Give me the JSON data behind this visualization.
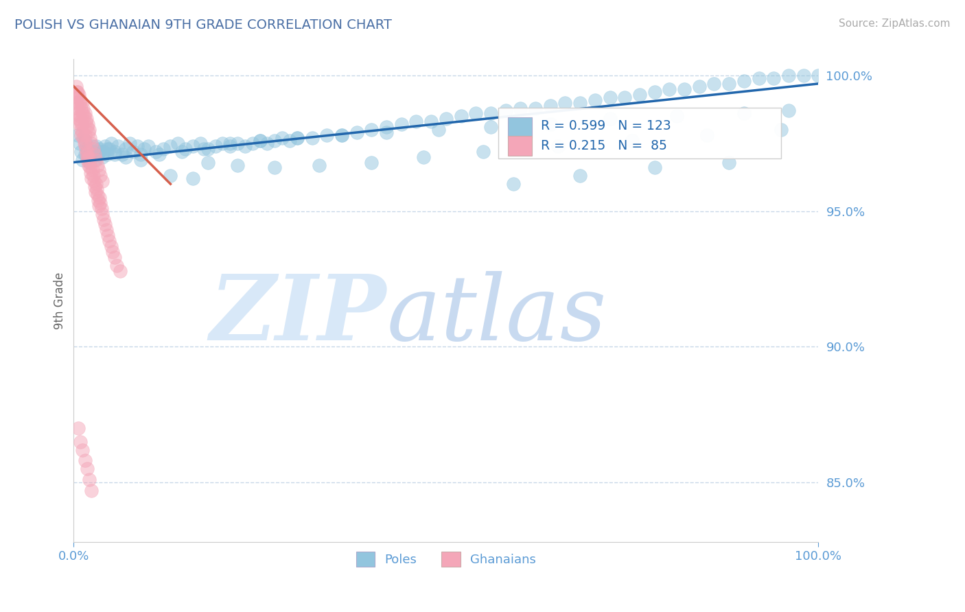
{
  "title": "POLISH VS GHANAIAN 9TH GRADE CORRELATION CHART",
  "source_text": "Source: ZipAtlas.com",
  "ylabel": "9th Grade",
  "x_min": 0.0,
  "x_max": 1.0,
  "y_min": 0.828,
  "y_max": 1.006,
  "y_ticks": [
    0.85,
    0.9,
    0.95,
    1.0
  ],
  "y_tick_labels": [
    "85.0%",
    "90.0%",
    "95.0%",
    "100.0%"
  ],
  "blue_R": 0.599,
  "blue_N": 123,
  "pink_R": 0.215,
  "pink_N": 85,
  "blue_color": "#92c5de",
  "pink_color": "#f4a6b8",
  "blue_line_color": "#2166ac",
  "pink_line_color": "#d6604d",
  "title_color": "#4a6fa5",
  "axis_color": "#5b9bd5",
  "legend_text_color": "#2166ac",
  "watermark_zip_color": "#d8e8f8",
  "watermark_atlas_color": "#c8daf0",
  "grid_color": "#c8d8e8",
  "background_color": "#ffffff",
  "blue_scatter_x": [
    0.005,
    0.008,
    0.01,
    0.012,
    0.015,
    0.018,
    0.02,
    0.022,
    0.025,
    0.028,
    0.03,
    0.032,
    0.035,
    0.038,
    0.04,
    0.042,
    0.045,
    0.048,
    0.05,
    0.055,
    0.06,
    0.065,
    0.07,
    0.075,
    0.08,
    0.085,
    0.09,
    0.095,
    0.1,
    0.11,
    0.12,
    0.13,
    0.14,
    0.15,
    0.16,
    0.17,
    0.18,
    0.19,
    0.2,
    0.21,
    0.22,
    0.23,
    0.24,
    0.25,
    0.26,
    0.27,
    0.28,
    0.29,
    0.3,
    0.32,
    0.34,
    0.36,
    0.38,
    0.4,
    0.42,
    0.44,
    0.46,
    0.48,
    0.5,
    0.52,
    0.54,
    0.56,
    0.58,
    0.6,
    0.62,
    0.64,
    0.66,
    0.68,
    0.7,
    0.72,
    0.74,
    0.76,
    0.78,
    0.8,
    0.82,
    0.84,
    0.86,
    0.88,
    0.9,
    0.92,
    0.94,
    0.96,
    0.98,
    1.0,
    0.015,
    0.025,
    0.035,
    0.045,
    0.055,
    0.07,
    0.09,
    0.115,
    0.145,
    0.175,
    0.21,
    0.25,
    0.3,
    0.36,
    0.42,
    0.49,
    0.56,
    0.64,
    0.72,
    0.81,
    0.9,
    0.96,
    0.18,
    0.22,
    0.27,
    0.33,
    0.4,
    0.47,
    0.55,
    0.65,
    0.75,
    0.85,
    0.95,
    0.59,
    0.68,
    0.78,
    0.88,
    0.13,
    0.16
  ],
  "blue_scatter_y": [
    0.978,
    0.975,
    0.972,
    0.969,
    0.971,
    0.973,
    0.97,
    0.968,
    0.972,
    0.969,
    0.974,
    0.971,
    0.973,
    0.97,
    0.972,
    0.974,
    0.971,
    0.973,
    0.975,
    0.972,
    0.974,
    0.971,
    0.973,
    0.975,
    0.972,
    0.974,
    0.971,
    0.973,
    0.974,
    0.972,
    0.973,
    0.974,
    0.975,
    0.973,
    0.974,
    0.975,
    0.973,
    0.974,
    0.975,
    0.974,
    0.975,
    0.974,
    0.975,
    0.976,
    0.975,
    0.976,
    0.977,
    0.976,
    0.977,
    0.977,
    0.978,
    0.978,
    0.979,
    0.98,
    0.981,
    0.982,
    0.983,
    0.983,
    0.984,
    0.985,
    0.986,
    0.986,
    0.987,
    0.988,
    0.988,
    0.989,
    0.99,
    0.99,
    0.991,
    0.992,
    0.992,
    0.993,
    0.994,
    0.995,
    0.995,
    0.996,
    0.997,
    0.997,
    0.998,
    0.999,
    0.999,
    1.0,
    1.0,
    1.0,
    0.976,
    0.974,
    0.972,
    0.973,
    0.971,
    0.97,
    0.969,
    0.971,
    0.972,
    0.973,
    0.975,
    0.976,
    0.977,
    0.978,
    0.979,
    0.98,
    0.981,
    0.982,
    0.984,
    0.985,
    0.986,
    0.987,
    0.968,
    0.967,
    0.966,
    0.967,
    0.968,
    0.97,
    0.972,
    0.974,
    0.976,
    0.978,
    0.98,
    0.96,
    0.963,
    0.966,
    0.968,
    0.963,
    0.962
  ],
  "pink_scatter_x": [
    0.003,
    0.005,
    0.005,
    0.007,
    0.008,
    0.008,
    0.009,
    0.01,
    0.01,
    0.011,
    0.012,
    0.013,
    0.014,
    0.015,
    0.015,
    0.016,
    0.017,
    0.018,
    0.018,
    0.019,
    0.02,
    0.02,
    0.021,
    0.022,
    0.023,
    0.024,
    0.025,
    0.026,
    0.027,
    0.028,
    0.029,
    0.03,
    0.031,
    0.032,
    0.033,
    0.034,
    0.035,
    0.036,
    0.037,
    0.038,
    0.04,
    0.042,
    0.044,
    0.046,
    0.048,
    0.05,
    0.052,
    0.055,
    0.058,
    0.062,
    0.003,
    0.005,
    0.007,
    0.009,
    0.011,
    0.013,
    0.015,
    0.017,
    0.019,
    0.021,
    0.004,
    0.006,
    0.008,
    0.01,
    0.012,
    0.014,
    0.016,
    0.018,
    0.02,
    0.022,
    0.024,
    0.026,
    0.028,
    0.03,
    0.032,
    0.034,
    0.036,
    0.038,
    0.006,
    0.009,
    0.012,
    0.015,
    0.018,
    0.021,
    0.024
  ],
  "pink_scatter_y": [
    0.99,
    0.988,
    0.986,
    0.984,
    0.982,
    0.985,
    0.983,
    0.98,
    0.978,
    0.982,
    0.979,
    0.977,
    0.975,
    0.978,
    0.975,
    0.973,
    0.971,
    0.969,
    0.972,
    0.97,
    0.967,
    0.97,
    0.968,
    0.966,
    0.964,
    0.962,
    0.965,
    0.963,
    0.961,
    0.959,
    0.957,
    0.96,
    0.958,
    0.956,
    0.954,
    0.952,
    0.955,
    0.953,
    0.951,
    0.949,
    0.947,
    0.945,
    0.943,
    0.941,
    0.939,
    0.937,
    0.935,
    0.933,
    0.93,
    0.928,
    0.996,
    0.994,
    0.993,
    0.991,
    0.99,
    0.988,
    0.986,
    0.984,
    0.982,
    0.98,
    0.994,
    0.992,
    0.99,
    0.988,
    0.986,
    0.985,
    0.983,
    0.981,
    0.979,
    0.977,
    0.975,
    0.973,
    0.971,
    0.969,
    0.967,
    0.965,
    0.963,
    0.961,
    0.87,
    0.865,
    0.862,
    0.858,
    0.855,
    0.851,
    0.847
  ],
  "pink_line_x0": 0.0,
  "pink_line_y0": 0.996,
  "pink_line_x1": 0.13,
  "pink_line_y1": 0.96,
  "blue_line_x0": 0.0,
  "blue_line_y0": 0.968,
  "blue_line_x1": 1.0,
  "blue_line_y1": 0.997
}
